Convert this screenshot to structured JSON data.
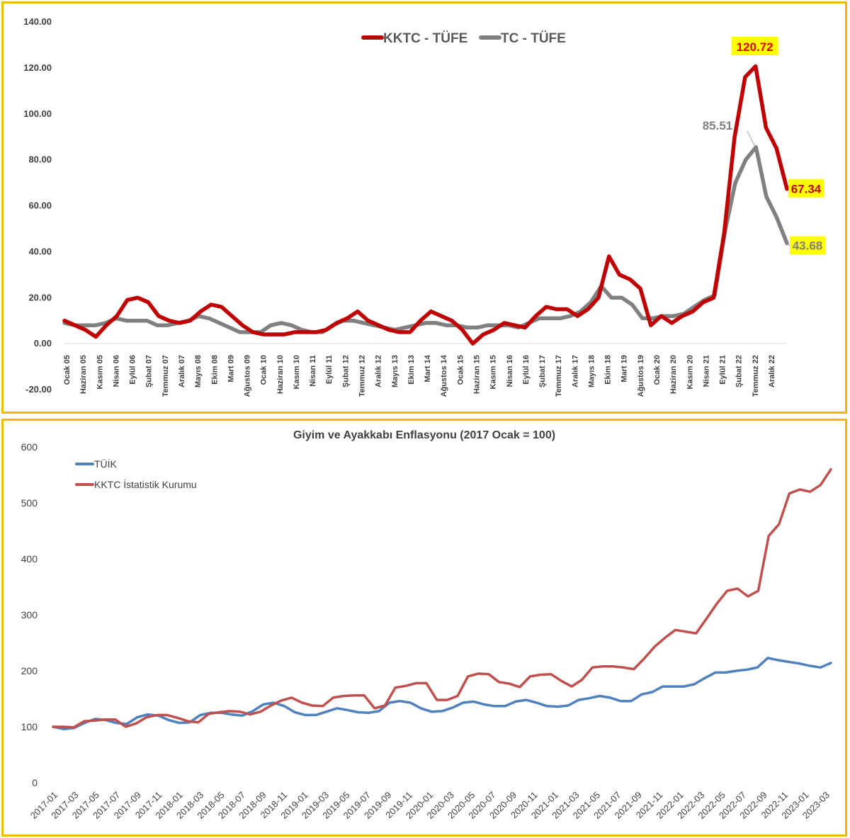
{
  "chart_data": [
    {
      "type": "line",
      "title": "",
      "xlabel": "",
      "ylabel": "",
      "ylim": [
        -20,
        140
      ],
      "yticks": [
        "140.00",
        "120.00",
        "100.00",
        "80.00",
        "60.00",
        "40.00",
        "20.00",
        "0.00",
        "-20.00"
      ],
      "grid": false,
      "legend_position": "top-center",
      "x_tick_labels": [
        "Ocak 05",
        "Haziran 05",
        "Kasım 05",
        "Nisan 06",
        "Eylül 06",
        "Şubat 07",
        "Temmuz 07",
        "Aralık 07",
        "Mayıs 08",
        "Ekim 08",
        "Mart 09",
        "Ağustos 09",
        "Ocak 10",
        "Haziran 10",
        "Kasım 10",
        "Nisan 11",
        "Eylül 11",
        "Şubat 12",
        "Temmuz 12",
        "Aralık 12",
        "Mayıs 13",
        "Ekim 13",
        "Mart 14",
        "Ağustos 14",
        "Ocak 15",
        "Haziran 15",
        "Kasım 15",
        "Nisan 16",
        "Eylül 16",
        "Şubat 17",
        "Temmuz 17",
        "Aralık 17",
        "Mayıs 18",
        "Ekim 18",
        "Mart 19",
        "Ağustos 19",
        "Ocak 20",
        "Haziran 20",
        "Kasım 20",
        "Nisan 21",
        "Eylül 21",
        "Şubat 22",
        "Temmuz 22",
        "Aralık 22"
      ],
      "series": [
        {
          "name": "KKTC - TÜFE",
          "color": "#c00000",
          "values": [
            10,
            8,
            6,
            3,
            8,
            12,
            19,
            20,
            18,
            12,
            10,
            9,
            10,
            14,
            17,
            16,
            12,
            8,
            5,
            4,
            4,
            4,
            5,
            5,
            5,
            6,
            9,
            11,
            14,
            10,
            8,
            6,
            5,
            5,
            10,
            14,
            12,
            10,
            6,
            0,
            4,
            6,
            9,
            8,
            7,
            12,
            16,
            15,
            15,
            12,
            15,
            20,
            38,
            30,
            28,
            24,
            8,
            12,
            9,
            12,
            14,
            18,
            20,
            48,
            90,
            116,
            120.72,
            94,
            85,
            67.34
          ],
          "labels": [
            {
              "text": "120.72",
              "index": 66
            },
            {
              "text": "67.34",
              "index": 69
            }
          ]
        },
        {
          "name": "TC - TÜFE",
          "color": "#808080",
          "values": [
            9,
            8,
            8,
            8,
            9,
            11,
            10,
            10,
            10,
            8,
            8,
            9,
            10,
            12,
            11,
            9,
            7,
            5,
            5,
            5,
            8,
            9,
            8,
            6,
            5,
            5,
            8,
            10,
            10,
            9,
            8,
            7,
            6,
            7,
            8,
            9,
            9,
            8,
            8,
            7,
            7,
            8,
            8,
            8,
            7,
            9,
            11,
            11,
            11,
            12,
            14,
            18,
            25,
            20,
            20,
            17,
            11,
            11,
            12,
            12,
            13,
            16,
            19,
            21,
            49,
            70,
            80,
            85.51,
            64,
            55,
            43.68
          ],
          "labels": [
            {
              "text": "85.51",
              "index": 67
            },
            {
              "text": "43.68",
              "index": 70
            }
          ]
        }
      ]
    },
    {
      "type": "line",
      "title": "Giyim ve Ayakkabı Enflasyonu (2017 Ocak = 100)",
      "xlabel": "",
      "ylabel": "",
      "ylim": [
        0,
        600
      ],
      "yticks": [
        "600",
        "500",
        "400",
        "300",
        "200",
        "100",
        "0"
      ],
      "grid": false,
      "legend_position": "top-left",
      "x_tick_labels": [
        "2017-01",
        "2017-03",
        "2017-05",
        "2017-07",
        "2017-09",
        "2017-11",
        "2018-01",
        "2018-03",
        "2018-05",
        "2018-07",
        "2018-09",
        "2018-11",
        "2019-01",
        "2019-03",
        "2019-05",
        "2019-07",
        "2019-09",
        "2019-11",
        "2020-01",
        "2020-03",
        "2020-05",
        "2020-07",
        "2020-09",
        "2020-11",
        "2021-01",
        "2021-03",
        "2021-05",
        "2021-07",
        "2021-09",
        "2021-11",
        "2022-01",
        "2022-03",
        "2022-05",
        "2022-07",
        "2022-09",
        "2022-11",
        "2023-01",
        "2023-03"
      ],
      "series": [
        {
          "name": "TÜİK",
          "color": "#4f81bd",
          "values": [
            100,
            96,
            98,
            107,
            114,
            112,
            107,
            105,
            117,
            122,
            120,
            112,
            107,
            108,
            121,
            125,
            125,
            122,
            120,
            128,
            140,
            143,
            137,
            126,
            121,
            121,
            127,
            133,
            130,
            126,
            125,
            128,
            143,
            146,
            143,
            133,
            127,
            128,
            134,
            143,
            145,
            140,
            137,
            137,
            145,
            148,
            143,
            137,
            136,
            138,
            148,
            151,
            155,
            152,
            146,
            146,
            158,
            162,
            172,
            172,
            172,
            176,
            187,
            197,
            197,
            200,
            202,
            206,
            223,
            219,
            216,
            213,
            209,
            206,
            214
          ]
        },
        {
          "name": "KKTC İstatistik Kurumu",
          "color": "#c0504d",
          "values": [
            100,
            100,
            99,
            110,
            111,
            113,
            113,
            100,
            106,
            117,
            121,
            121,
            116,
            110,
            108,
            123,
            126,
            128,
            127,
            122,
            127,
            138,
            147,
            152,
            143,
            138,
            137,
            152,
            155,
            156,
            156,
            133,
            138,
            170,
            173,
            178,
            178,
            148,
            148,
            155,
            190,
            195,
            194,
            180,
            177,
            171,
            190,
            193,
            194,
            182,
            172,
            184,
            206,
            208,
            208,
            206,
            203,
            222,
            243,
            259,
            273,
            270,
            267,
            293,
            320,
            343,
            347,
            333,
            343,
            441,
            462,
            517,
            524,
            520,
            532,
            560
          ]
        }
      ]
    }
  ]
}
